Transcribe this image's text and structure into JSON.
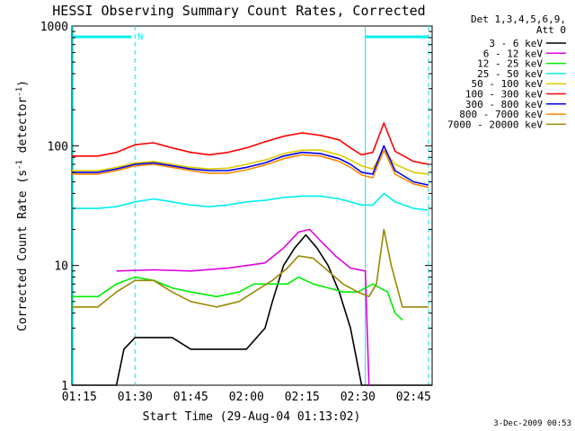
{
  "chart_data": {
    "type": "line",
    "title": "HESSI Observing Summary Count Rates, Corrected",
    "xlabel": "Start Time (29-Aug-04 01:13:02)",
    "ylabel": "Corrected Count Rate (s",
    "ylabel_sup": "-1",
    "ylabel_mid": " detector",
    "ylabel_sup2": "-1",
    "ylabel_end": ")",
    "y_scale": "log",
    "ylim": [
      1,
      1000
    ],
    "y_ticks": [
      "1",
      "10",
      "100",
      "1000"
    ],
    "xlim": [
      "01:13",
      "02:50"
    ],
    "x_ticks": [
      "01:15",
      "01:30",
      "01:45",
      "02:00",
      "02:15",
      "02:30",
      "02:45"
    ],
    "grid": false,
    "legend_position": "right",
    "legend_header": [
      "Det 1,3,4,5,6,9,",
      "Att 0"
    ],
    "timestamp": "3-Dec-2009 00:53",
    "night_marker": "N",
    "saa_night_markers": [
      "01:30",
      "02:32",
      "02:49"
    ],
    "series": [
      {
        "name": "3 - 6 keV",
        "color": "#000000",
        "points": [
          [
            "01:13",
            1
          ],
          [
            "01:25",
            1
          ],
          [
            "01:26",
            1.4
          ],
          [
            "01:27",
            2
          ],
          [
            "01:30",
            2.5
          ],
          [
            "01:40",
            2.5
          ],
          [
            "01:45",
            2
          ],
          [
            "01:50",
            2
          ],
          [
            "02:00",
            2
          ],
          [
            "02:05",
            3
          ],
          [
            "02:07",
            5
          ],
          [
            "02:10",
            10
          ],
          [
            "02:13",
            14
          ],
          [
            "02:16",
            18
          ],
          [
            "02:19",
            14
          ],
          [
            "02:22",
            10
          ],
          [
            "02:25",
            6
          ],
          [
            "02:28",
            3
          ],
          [
            "02:31",
            1
          ],
          [
            "02:50",
            1
          ]
        ]
      },
      {
        "name": "6 - 12 keV",
        "color": "#e000e0",
        "points": [
          [
            "01:13",
            null
          ],
          [
            "01:24",
            null
          ],
          [
            "01:25",
            9
          ],
          [
            "01:35",
            9.2
          ],
          [
            "01:45",
            9
          ],
          [
            "01:55",
            9.5
          ],
          [
            "02:05",
            10.5
          ],
          [
            "02:10",
            14
          ],
          [
            "02:14",
            19
          ],
          [
            "02:17",
            20
          ],
          [
            "02:20",
            16
          ],
          [
            "02:24",
            12
          ],
          [
            "02:28",
            9.5
          ],
          [
            "02:32",
            9
          ],
          [
            "02:33",
            1
          ]
        ]
      },
      {
        "name": "12 - 25 keV",
        "color": "#00ee00",
        "points": [
          [
            "01:13",
            5.5
          ],
          [
            "01:20",
            5.5
          ],
          [
            "01:25",
            7
          ],
          [
            "01:30",
            8
          ],
          [
            "01:35",
            7.5
          ],
          [
            "01:40",
            6.5
          ],
          [
            "01:45",
            6
          ],
          [
            "01:52",
            5.5
          ],
          [
            "01:58",
            6
          ],
          [
            "02:02",
            7
          ],
          [
            "02:07",
            7
          ],
          [
            "02:11",
            7
          ],
          [
            "02:14",
            8
          ],
          [
            "02:18",
            7
          ],
          [
            "02:22",
            6.5
          ],
          [
            "02:26",
            6
          ],
          [
            "02:30",
            6
          ],
          [
            "02:34",
            7
          ],
          [
            "02:38",
            6
          ],
          [
            "02:40",
            4
          ],
          [
            "02:42",
            3.5
          ]
        ]
      },
      {
        "name": "25 - 50 keV",
        "color": "#00eeee",
        "points": [
          [
            "01:13",
            30
          ],
          [
            "01:20",
            30
          ],
          [
            "01:25",
            31
          ],
          [
            "01:30",
            34
          ],
          [
            "01:35",
            36
          ],
          [
            "01:40",
            34
          ],
          [
            "01:45",
            32
          ],
          [
            "01:50",
            31
          ],
          [
            "01:55",
            32
          ],
          [
            "02:00",
            34
          ],
          [
            "02:05",
            35
          ],
          [
            "02:10",
            37
          ],
          [
            "02:15",
            38
          ],
          [
            "02:20",
            38
          ],
          [
            "02:25",
            36
          ],
          [
            "02:28",
            34
          ],
          [
            "02:31",
            32
          ],
          [
            "02:34",
            32
          ],
          [
            "02:37",
            40
          ],
          [
            "02:40",
            34
          ],
          [
            "02:45",
            30
          ],
          [
            "02:49",
            29
          ]
        ]
      },
      {
        "name": "50 - 100 keV",
        "color": "#ddcc00",
        "points": [
          [
            "01:13",
            62
          ],
          [
            "01:20",
            62
          ],
          [
            "01:25",
            66
          ],
          [
            "01:30",
            72
          ],
          [
            "01:35",
            74
          ],
          [
            "01:40",
            70
          ],
          [
            "01:45",
            66
          ],
          [
            "01:50",
            64
          ],
          [
            "01:55",
            65
          ],
          [
            "02:00",
            70
          ],
          [
            "02:05",
            76
          ],
          [
            "02:10",
            86
          ],
          [
            "02:15",
            92
          ],
          [
            "02:20",
            92
          ],
          [
            "02:25",
            84
          ],
          [
            "02:28",
            76
          ],
          [
            "02:31",
            68
          ],
          [
            "02:34",
            64
          ],
          [
            "02:37",
            92
          ],
          [
            "02:40",
            70
          ],
          [
            "02:45",
            60
          ],
          [
            "02:49",
            58
          ]
        ]
      },
      {
        "name": "100 - 300 keV",
        "color": "#ff0000",
        "points": [
          [
            "01:13",
            82
          ],
          [
            "01:20",
            82
          ],
          [
            "01:25",
            88
          ],
          [
            "01:30",
            102
          ],
          [
            "01:35",
            106
          ],
          [
            "01:40",
            96
          ],
          [
            "01:45",
            88
          ],
          [
            "01:50",
            84
          ],
          [
            "01:55",
            88
          ],
          [
            "02:00",
            96
          ],
          [
            "02:05",
            108
          ],
          [
            "02:10",
            120
          ],
          [
            "02:15",
            128
          ],
          [
            "02:20",
            122
          ],
          [
            "02:25",
            112
          ],
          [
            "02:28",
            96
          ],
          [
            "02:31",
            84
          ],
          [
            "02:34",
            88
          ],
          [
            "02:37",
            155
          ],
          [
            "02:40",
            90
          ],
          [
            "02:45",
            74
          ],
          [
            "02:49",
            70
          ]
        ]
      },
      {
        "name": "300 - 800 keV",
        "color": "#0000ee",
        "points": [
          [
            "01:13",
            60
          ],
          [
            "01:20",
            60
          ],
          [
            "01:25",
            64
          ],
          [
            "01:30",
            70
          ],
          [
            "01:35",
            72
          ],
          [
            "01:40",
            68
          ],
          [
            "01:45",
            64
          ],
          [
            "01:50",
            62
          ],
          [
            "01:55",
            62
          ],
          [
            "02:00",
            66
          ],
          [
            "02:05",
            72
          ],
          [
            "02:10",
            82
          ],
          [
            "02:15",
            88
          ],
          [
            "02:20",
            86
          ],
          [
            "02:25",
            78
          ],
          [
            "02:28",
            70
          ],
          [
            "02:31",
            60
          ],
          [
            "02:34",
            58
          ],
          [
            "02:37",
            100
          ],
          [
            "02:40",
            62
          ],
          [
            "02:45",
            50
          ],
          [
            "02:49",
            47
          ]
        ]
      },
      {
        "name": "800 - 7000 keV",
        "color": "#ff8800",
        "points": [
          [
            "01:13",
            58
          ],
          [
            "01:20",
            58
          ],
          [
            "01:25",
            62
          ],
          [
            "01:30",
            68
          ],
          [
            "01:35",
            70
          ],
          [
            "01:40",
            66
          ],
          [
            "01:45",
            62
          ],
          [
            "01:50",
            59
          ],
          [
            "01:55",
            59
          ],
          [
            "02:00",
            63
          ],
          [
            "02:05",
            69
          ],
          [
            "02:10",
            78
          ],
          [
            "02:15",
            84
          ],
          [
            "02:20",
            82
          ],
          [
            "02:25",
            74
          ],
          [
            "02:28",
            66
          ],
          [
            "02:31",
            57
          ],
          [
            "02:34",
            54
          ],
          [
            "02:37",
            92
          ],
          [
            "02:40",
            58
          ],
          [
            "02:45",
            48
          ],
          [
            "02:49",
            45
          ]
        ]
      },
      {
        "name": "7000 - 20000 keV",
        "color": "#998800",
        "points": [
          [
            "01:13",
            4.5
          ],
          [
            "01:20",
            4.5
          ],
          [
            "01:25",
            6
          ],
          [
            "01:30",
            7.5
          ],
          [
            "01:35",
            7.5
          ],
          [
            "01:40",
            6
          ],
          [
            "01:45",
            5
          ],
          [
            "01:52",
            4.5
          ],
          [
            "01:58",
            5
          ],
          [
            "02:02",
            6
          ],
          [
            "02:07",
            7.5
          ],
          [
            "02:11",
            9.5
          ],
          [
            "02:14",
            12
          ],
          [
            "02:18",
            11.5
          ],
          [
            "02:22",
            9
          ],
          [
            "02:26",
            7
          ],
          [
            "02:30",
            6
          ],
          [
            "02:33",
            5.5
          ],
          [
            "02:35",
            7
          ],
          [
            "02:37",
            20
          ],
          [
            "02:39",
            10
          ],
          [
            "02:42",
            4.5
          ],
          [
            "02:49",
            4.5
          ]
        ]
      }
    ]
  }
}
